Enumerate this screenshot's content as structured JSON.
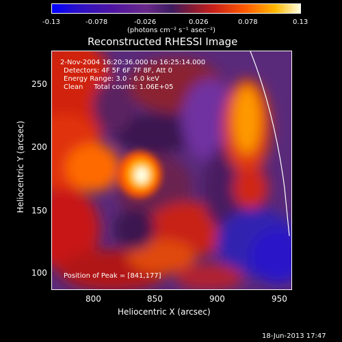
{
  "colorbar": {
    "ticks": [
      "-0.13",
      "-0.078",
      "-0.026",
      "0.026",
      "0.078",
      "0.13"
    ],
    "units": "(photons cm⁻² s⁻¹ asec⁻²)"
  },
  "title": "Reconstructed RHESSI Image",
  "info": {
    "time_range": "2-Nov-2004 16:20:36.000 to 16:25:14.000",
    "detectors": "Detectors: 4F 5F 6F 7F 8F, Att 0",
    "energy": "Energy Range: 3.0 - 6.0 keV",
    "clean": "Clean     Total counts: 1.06E+05",
    "peak": "Position of Peak = [841,177]"
  },
  "axes": {
    "xlabel": "Heliocentric X (arcsec)",
    "ylabel": "Heliocentric Y (arcsec)",
    "xticks": [
      "800",
      "850",
      "900",
      "950"
    ],
    "yticks": [
      "250",
      "200",
      "150",
      "100"
    ]
  },
  "footer": "18-Jun-2013 17:47"
}
